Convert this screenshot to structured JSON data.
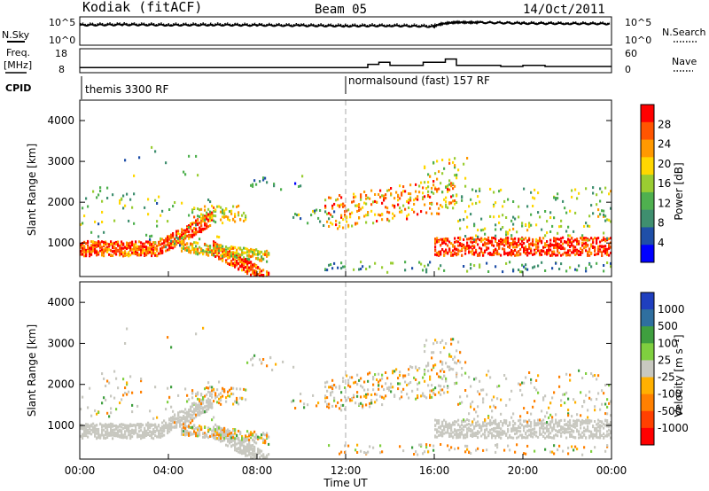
{
  "header": {
    "station": "Kodiak (fitACF)",
    "beam": "Beam 05",
    "date": "14/Oct/2011"
  },
  "top_panel": {
    "left_label": "N.Sky",
    "right_label": "N.Search",
    "left_ticks": [
      "10^5",
      "10^0"
    ],
    "right_ticks": [
      "10^5",
      "10^0"
    ]
  },
  "freq_panel": {
    "left_label_1": "Freq.",
    "left_label_2": "[MHz]",
    "left_ticks": [
      "18",
      "8"
    ],
    "right_label": "Nave",
    "right_ticks": [
      "60",
      "0"
    ]
  },
  "cpid_panel": {
    "label": "CPID",
    "segments": [
      "themis 3300 RF",
      "normalsound (fast) 157 RF"
    ]
  },
  "time_axis": {
    "label": "Time UT",
    "ticks": [
      "00:00",
      "04:00",
      "08:00",
      "12:00",
      "16:00",
      "20:00",
      "00:00"
    ]
  },
  "colors": {
    "power_scale": [
      "#0000ff",
      "#1f4fa8",
      "#3f8f6f",
      "#4fb04f",
      "#9acd32",
      "#ffd700",
      "#ff9900",
      "#ff5500",
      "#ff0000"
    ],
    "velocity_scale": [
      "#1f3fbf",
      "#2f6f9f",
      "#3f9f3f",
      "#7fcf3f",
      "#c8c8c0",
      "#ffb000",
      "#ff8000",
      "#ff4000",
      "#ff0000"
    ]
  },
  "chart_data": [
    {
      "type": "line",
      "title": "",
      "xlabel": "",
      "ylabel": "N.Sky",
      "y2label": "N.Search",
      "xlim": [
        "00:00",
        "24:00"
      ],
      "series": [
        {
          "name": "N.Sky",
          "x": [
            0,
            2,
            4,
            6,
            8,
            10,
            12,
            14,
            16,
            17,
            18,
            20,
            22,
            24
          ],
          "values": [
            20000,
            25000,
            20000,
            22000,
            18000,
            15000,
            12000,
            14000,
            9000,
            90000,
            80000,
            50000,
            45000,
            40000
          ]
        },
        {
          "name": "N.Search",
          "x": [
            0,
            2,
            4,
            6,
            8,
            10,
            12,
            14,
            16,
            17,
            18,
            20,
            22,
            24
          ],
          "values": [
            40000,
            50000,
            40000,
            45000,
            35000,
            30000,
            25000,
            28000,
            20000,
            120000,
            110000,
            90000,
            80000,
            70000
          ]
        }
      ]
    },
    {
      "type": "line",
      "title": "",
      "ylabel": "Freq. [MHz]",
      "y2label": "Nave",
      "ylim": [
        8,
        18
      ],
      "y2lim": [
        0,
        60
      ],
      "series": [
        {
          "name": "Freq.",
          "x": [
            0,
            12,
            13.0,
            13.5,
            14.0,
            14.5,
            15.5,
            16.5,
            17.0,
            19.0,
            20.0,
            21.0,
            22.0,
            24
          ],
          "values": [
            10.0,
            10.0,
            11.5,
            12.5,
            11.0,
            11.0,
            12.5,
            14.0,
            11.0,
            10.5,
            11.0,
            10.5,
            10.5,
            10.5
          ]
        }
      ]
    },
    {
      "type": "heatmap",
      "title": "Power",
      "ylabel": "Slant Range [km]",
      "xlabel": "Time UT",
      "ylim": [
        180,
        4500
      ],
      "yticks": [
        1000,
        2000,
        3000,
        4000
      ],
      "colorbar": {
        "label": "Power [dB]",
        "ticks": [
          4,
          8,
          12,
          16,
          20,
          24,
          28
        ],
        "range": [
          0,
          30
        ]
      },
      "notes": "Echo band near 800-1000 km across day; 1500-2500 km scatter 00-08 and 12-18 UT; sparse near 12 UT"
    },
    {
      "type": "heatmap",
      "title": "Velocity",
      "ylabel": "Slant Range [km]",
      "xlabel": "Time UT",
      "ylim": [
        180,
        4500
      ],
      "yticks": [
        1000,
        2000,
        3000,
        4000
      ],
      "colorbar": {
        "label": "Velocity [m s^-1]",
        "ticks": [
          1000,
          500,
          100,
          25,
          -25,
          -100,
          -500,
          -1000
        ]
      }
    }
  ]
}
